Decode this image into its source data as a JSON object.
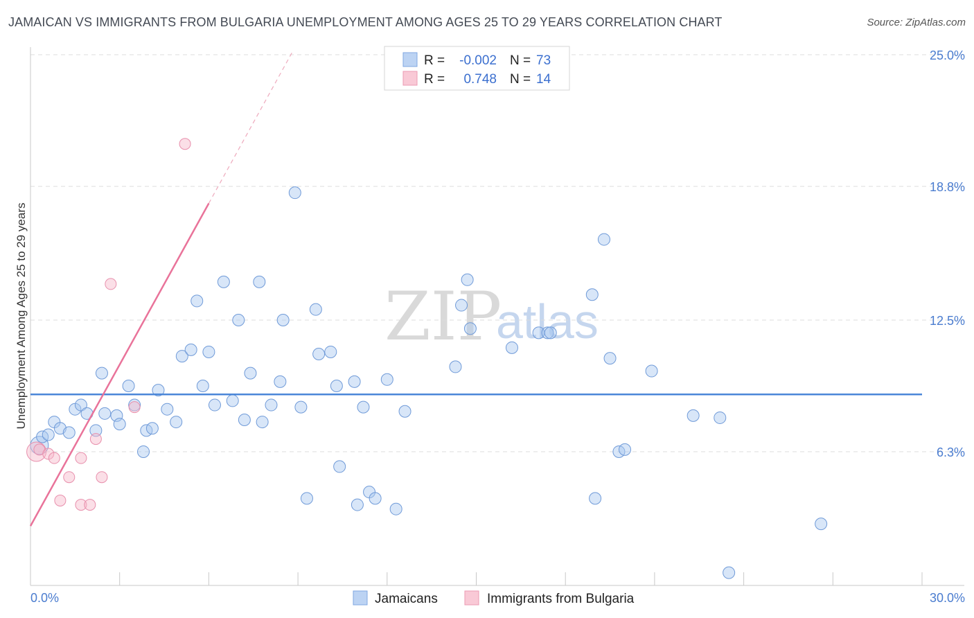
{
  "title": "JAMAICAN VS IMMIGRANTS FROM BULGARIA UNEMPLOYMENT AMONG AGES 25 TO 29 YEARS CORRELATION CHART",
  "source": "Source: ZipAtlas.com",
  "watermark": {
    "part1": "ZIP",
    "part2": "atlas"
  },
  "legend": {
    "rows": [
      {
        "r_label": "R =",
        "r_value": "-0.002",
        "n_label": "N =",
        "n_value": "73",
        "color": "#a9c7ef"
      },
      {
        "r_label": "R =",
        "r_value": "0.748",
        "n_label": "N =",
        "n_value": "14",
        "color": "#f7b8c9"
      }
    ]
  },
  "bottom_legend": [
    "Jamaicans",
    "Immigrants from Bulgaria"
  ],
  "chart_data": {
    "type": "scatter",
    "title": "JAMAICAN VS IMMIGRANTS FROM BULGARIA UNEMPLOYMENT AMONG AGES 25 TO 29 YEARS CORRELATION CHART",
    "xlabel": "",
    "ylabel": "Unemployment Among Ages 25 to 29 years",
    "xlim": [
      0,
      30
    ],
    "ylim": [
      0,
      25
    ],
    "x_tick_labels": [
      "0.0%",
      "30.0%"
    ],
    "y_ticks": [
      6.3,
      12.5,
      18.8,
      25.0
    ],
    "y_tick_labels": [
      "6.3%",
      "12.5%",
      "18.8%",
      "25.0%"
    ],
    "colors": {
      "jamaicans": "#4a86d8",
      "bulgaria": "#e9739a"
    },
    "series": [
      {
        "name": "Jamaicans",
        "trend": {
          "x": [
            0,
            30
          ],
          "y": [
            9.0,
            9.0
          ]
        },
        "points": [
          [
            0.3,
            6.6
          ],
          [
            0.4,
            7.0
          ],
          [
            0.6,
            7.1
          ],
          [
            0.8,
            7.7
          ],
          [
            1.0,
            7.4
          ],
          [
            1.3,
            7.2
          ],
          [
            1.5,
            8.3
          ],
          [
            1.7,
            8.5
          ],
          [
            1.9,
            8.1
          ],
          [
            2.2,
            7.3
          ],
          [
            2.4,
            10.0
          ],
          [
            2.5,
            8.1
          ],
          [
            2.9,
            8.0
          ],
          [
            3.0,
            7.6
          ],
          [
            3.3,
            9.4
          ],
          [
            3.5,
            8.5
          ],
          [
            3.8,
            6.3
          ],
          [
            3.9,
            7.3
          ],
          [
            4.1,
            7.4
          ],
          [
            4.3,
            9.2
          ],
          [
            4.6,
            8.3
          ],
          [
            4.9,
            7.7
          ],
          [
            5.1,
            10.8
          ],
          [
            5.4,
            11.1
          ],
          [
            5.6,
            13.4
          ],
          [
            5.8,
            9.4
          ],
          [
            6.0,
            11.0
          ],
          [
            6.2,
            8.5
          ],
          [
            6.5,
            14.3
          ],
          [
            6.8,
            8.7
          ],
          [
            7.0,
            12.5
          ],
          [
            7.2,
            7.8
          ],
          [
            7.4,
            10.0
          ],
          [
            7.7,
            14.3
          ],
          [
            7.8,
            7.7
          ],
          [
            8.1,
            8.5
          ],
          [
            8.4,
            9.6
          ],
          [
            8.5,
            12.5
          ],
          [
            8.9,
            18.5
          ],
          [
            9.1,
            8.4
          ],
          [
            9.3,
            4.1
          ],
          [
            9.6,
            13.0
          ],
          [
            9.7,
            10.9
          ],
          [
            10.1,
            11.0
          ],
          [
            10.3,
            9.4
          ],
          [
            10.4,
            5.6
          ],
          [
            10.9,
            9.6
          ],
          [
            11.0,
            3.8
          ],
          [
            11.2,
            8.4
          ],
          [
            11.4,
            4.4
          ],
          [
            11.6,
            4.1
          ],
          [
            12.0,
            9.7
          ],
          [
            12.3,
            3.6
          ],
          [
            12.6,
            8.2
          ],
          [
            14.3,
            10.3
          ],
          [
            14.5,
            13.2
          ],
          [
            14.7,
            14.4
          ],
          [
            14.8,
            12.1
          ],
          [
            16.2,
            11.2
          ],
          [
            17.1,
            11.9
          ],
          [
            17.4,
            11.9
          ],
          [
            17.5,
            11.9
          ],
          [
            18.9,
            13.7
          ],
          [
            19.0,
            4.1
          ],
          [
            19.3,
            16.3
          ],
          [
            19.5,
            10.7
          ],
          [
            19.8,
            6.3
          ],
          [
            20.0,
            6.4
          ],
          [
            20.9,
            10.1
          ],
          [
            22.3,
            8.0
          ],
          [
            23.2,
            7.9
          ],
          [
            23.5,
            0.6
          ],
          [
            26.6,
            2.9
          ]
        ]
      },
      {
        "name": "Immigrants from Bulgaria",
        "trend": {
          "x": [
            0,
            6.0
          ],
          "y": [
            2.8,
            18.0
          ],
          "dashed_extension": {
            "x": [
              6.0,
              8.8
            ],
            "y": [
              18.0,
              25.1
            ]
          }
        },
        "points": [
          [
            0.2,
            6.3
          ],
          [
            0.3,
            6.4
          ],
          [
            0.6,
            6.2
          ],
          [
            0.8,
            6.0
          ],
          [
            1.0,
            4.0
          ],
          [
            1.3,
            5.1
          ],
          [
            1.7,
            3.8
          ],
          [
            1.7,
            6.0
          ],
          [
            2.0,
            3.8
          ],
          [
            2.2,
            6.9
          ],
          [
            2.4,
            5.1
          ],
          [
            2.7,
            14.2
          ],
          [
            3.5,
            8.4
          ],
          [
            5.2,
            20.8
          ]
        ]
      }
    ]
  }
}
